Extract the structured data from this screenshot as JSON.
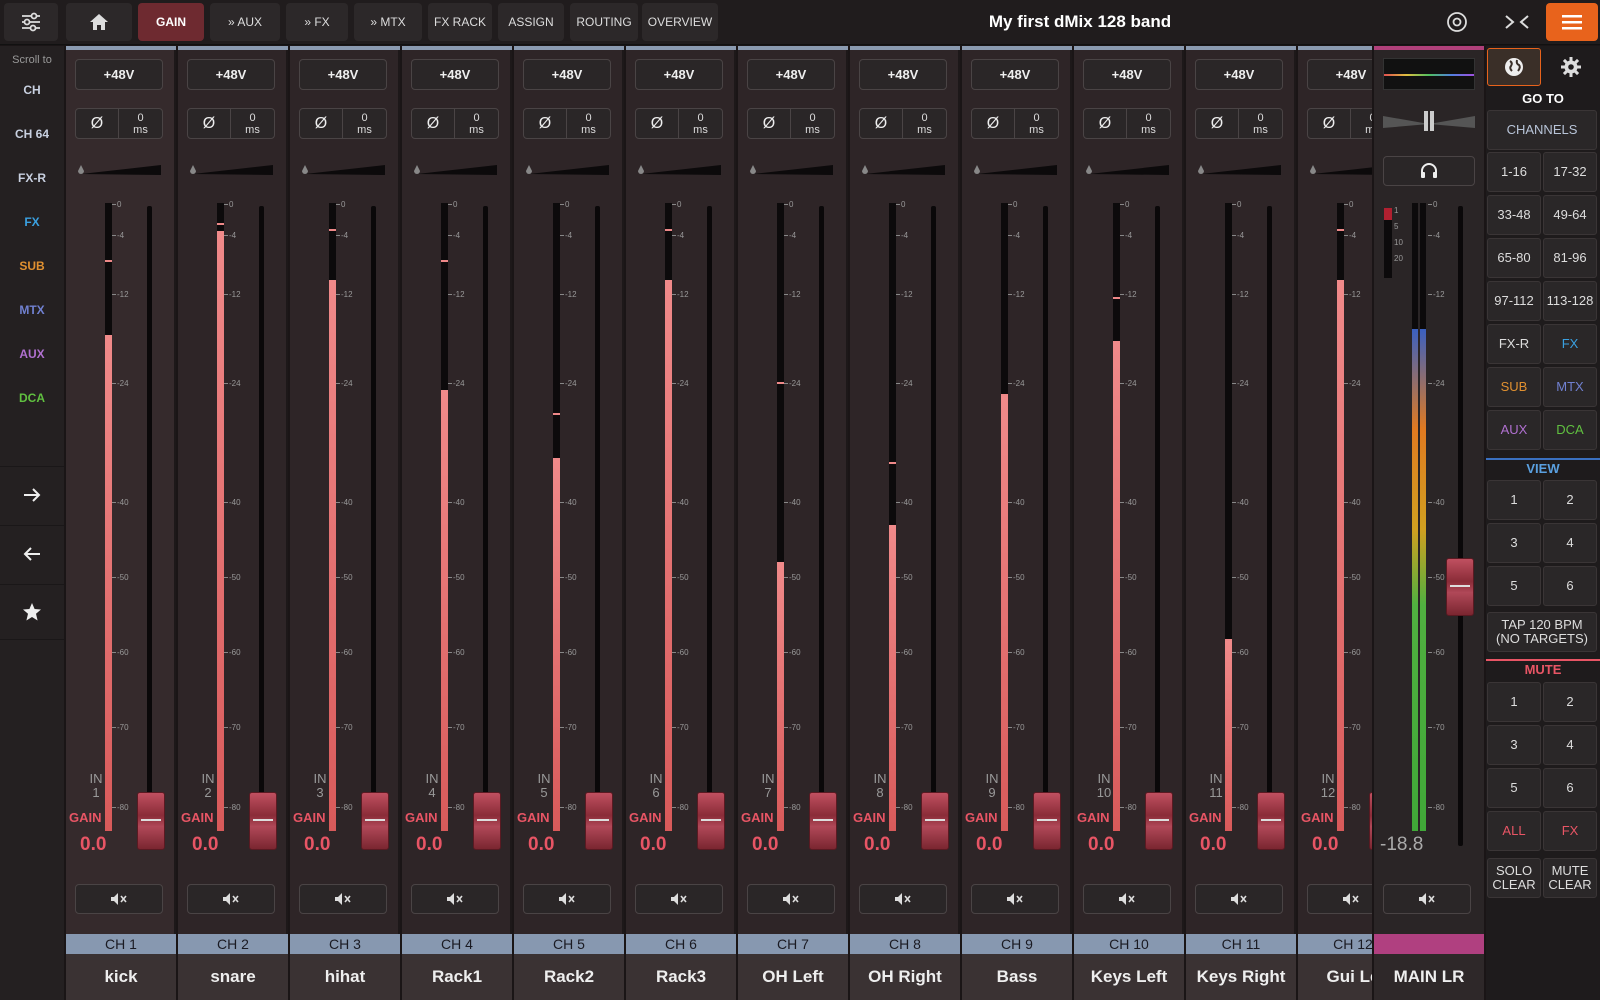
{
  "topbar": {
    "tabs": [
      {
        "label": "GAIN",
        "active": true
      },
      {
        "label": "» AUX"
      },
      {
        "label": "» FX"
      },
      {
        "label": "» MTX"
      },
      {
        "label": "FX RACK"
      },
      {
        "label": "ASSIGN"
      },
      {
        "label": "ROUTING"
      },
      {
        "label": "OVERVIEW"
      }
    ],
    "title": "My first dMix 128 band",
    "icons": [
      "mixer-settings-icon",
      "home-icon",
      "target-icon",
      "collapse-icon",
      "menu-icon"
    ],
    "accent": "#e8631c"
  },
  "leftnav": {
    "title": "Scroll to",
    "items": [
      {
        "label": "CH",
        "color": "#c8d0e0"
      },
      {
        "label": "CH 64",
        "color": "#c8d0e0"
      },
      {
        "label": "FX-R",
        "color": "#c8d0e0"
      },
      {
        "label": "FX",
        "color": "#3aa0e0"
      },
      {
        "label": "SUB",
        "color": "#e09030"
      },
      {
        "label": "MTX",
        "color": "#7080d0"
      },
      {
        "label": "AUX",
        "color": "#b070d0"
      },
      {
        "label": "DCA",
        "color": "#60c040"
      }
    ]
  },
  "strip_common": {
    "phantom": "+48V",
    "phase": "Ø",
    "delay_value": "0",
    "delay_unit": "ms",
    "in_label": "IN",
    "gain_label": "GAIN",
    "scale": [
      "0",
      "-4",
      "-12",
      "-24",
      "-40",
      "-50",
      "-60",
      "-70",
      "-80"
    ]
  },
  "channels": [
    {
      "id": "CH 1",
      "name": "kick",
      "in": "1",
      "gain": "0.0",
      "level": 0.81,
      "peak": 0.93
    },
    {
      "id": "CH 2",
      "name": "snare",
      "in": "2",
      "gain": "0.0",
      "level": 0.98,
      "peak": 0.99
    },
    {
      "id": "CH 3",
      "name": "hihat",
      "in": "3",
      "gain": "0.0",
      "level": 0.9,
      "peak": 0.98
    },
    {
      "id": "CH 4",
      "name": "Rack1",
      "in": "4",
      "gain": "0.0",
      "level": 0.72,
      "peak": 0.93
    },
    {
      "id": "CH 5",
      "name": "Rack2",
      "in": "5",
      "gain": "0.0",
      "level": 0.61,
      "peak": 0.68
    },
    {
      "id": "CH 6",
      "name": "Rack3",
      "in": "6",
      "gain": "0.0",
      "level": 0.9,
      "peak": 0.98
    },
    {
      "id": "CH 7",
      "name": "OH Left",
      "in": "7",
      "gain": "0.0",
      "level": 0.44,
      "peak": 0.73
    },
    {
      "id": "CH 8",
      "name": "OH Right",
      "in": "8",
      "gain": "0.0",
      "level": 0.5,
      "peak": 0.6
    },
    {
      "id": "CH 9",
      "name": "Bass",
      "in": "9",
      "gain": "0.0",
      "level": 0.71,
      "peak": 0.71
    },
    {
      "id": "CH 10",
      "name": "Keys Left",
      "in": "10",
      "gain": "0.0",
      "level": 0.8,
      "peak": 0.87
    },
    {
      "id": "CH 11",
      "name": "Keys Right",
      "in": "11",
      "gain": "0.0",
      "level": 0.31,
      "peak": 0.31
    },
    {
      "id": "CH 12",
      "name": "Gui Le",
      "in": "12",
      "gain": "0.0",
      "level": 0.9,
      "peak": 0.98
    }
  ],
  "main_lr": {
    "name": "MAIN LR",
    "level": "-18.8",
    "meter_level_left": 0.8,
    "meter_level_right": 0.8,
    "comp_scale": [
      "1",
      "5",
      "10",
      "20"
    ]
  },
  "rightpanel": {
    "goto_label": "GO TO",
    "channels_label": "CHANNELS",
    "channel_ranges": [
      "1-16",
      "17-32",
      "33-48",
      "49-64",
      "65-80",
      "81-96",
      "97-112",
      "113-128"
    ],
    "group_buttons": [
      {
        "label": "FX-R",
        "color": "#ddd"
      },
      {
        "label": "FX",
        "color": "#3aa0e0"
      },
      {
        "label": "SUB",
        "color": "#e09030"
      },
      {
        "label": "MTX",
        "color": "#7080d0"
      },
      {
        "label": "AUX",
        "color": "#b070d0"
      },
      {
        "label": "DCA",
        "color": "#60c040"
      }
    ],
    "view_label": "VIEW",
    "view_buttons": [
      "1",
      "2",
      "3",
      "4",
      "5",
      "6"
    ],
    "tap_label": "TAP 120 BPM (NO TARGETS)",
    "mute_label": "MUTE",
    "mute_buttons": [
      "1",
      "2",
      "3",
      "4",
      "5",
      "6"
    ],
    "mute_all": "ALL",
    "mute_fx": "FX",
    "solo_clear": "SOLO CLEAR",
    "mute_clear": "MUTE CLEAR"
  }
}
